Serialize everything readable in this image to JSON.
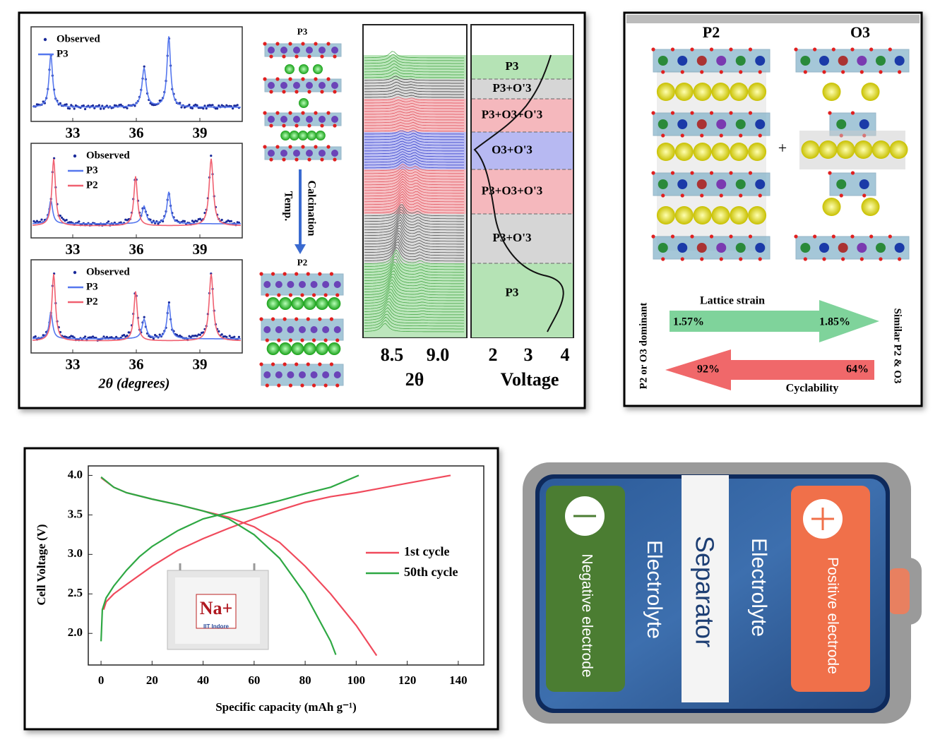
{
  "xrd_panel": {
    "plots": [
      {
        "legend": [
          "Observed",
          "P3"
        ],
        "xticks": [
          33,
          36,
          39
        ]
      },
      {
        "legend": [
          "Observed",
          "P3",
          "P2"
        ],
        "xticks": [
          33,
          36,
          39
        ]
      },
      {
        "legend": [
          "Observed",
          "P3",
          "P2"
        ],
        "xticks": [
          33,
          36,
          39
        ]
      }
    ],
    "xlabel": "2θ (degrees)",
    "structure_top": "P3",
    "arrow_labels": [
      "Calcination",
      "Temp."
    ],
    "structure_bottom": "P2",
    "insitu": {
      "phases": [
        "P3",
        "P3+O'3",
        "P3+O3+O'3",
        "O3+O'3",
        "P3+O3+O'3",
        "P3+O'3",
        "P3"
      ],
      "two_theta_ticks": [
        8.5,
        {
          "value": 9,
          "label": "9.0"
        }
      ],
      "two_theta_label": "2θ",
      "voltage_ticks": [
        2,
        3,
        4
      ],
      "voltage_label": "Voltage"
    }
  },
  "comparison_panel": {
    "structures": [
      "P2",
      "O3"
    ],
    "plus": "+",
    "strain_label": "Lattice strain",
    "strain_values": [
      "1.57%",
      "1.85%"
    ],
    "cyclability_values": [
      "92%",
      "64%"
    ],
    "cyclability_label": "Cyclability",
    "left_label": "P2 or O3 dominant",
    "right_label": "Similar P2 & O3"
  },
  "chart_data": {
    "type": "line",
    "xlabel": "Specific capacity (mAh g⁻¹)",
    "ylabel": "Cell Voltage (V)",
    "xlim": [
      -5,
      150
    ],
    "ylim": [
      1.6,
      4.12
    ],
    "xticks": [
      0,
      20,
      40,
      60,
      80,
      100,
      120,
      140
    ],
    "yticks": [
      {
        "value": 2,
        "label": "2.0"
      },
      2.5,
      {
        "value": 3,
        "label": "3.0"
      },
      3.5,
      {
        "value": 4,
        "label": "4.0"
      }
    ],
    "series": [
      {
        "name": "1st cycle",
        "color": "#f04a5c",
        "x": [
          1,
          2,
          5,
          10,
          20,
          30,
          40,
          50,
          60,
          70,
          80,
          90,
          100,
          110,
          120,
          130,
          137,
          null,
          0,
          5,
          10,
          20,
          30,
          40,
          50,
          60,
          70,
          80,
          90,
          100,
          108
        ],
        "values": [
          2.3,
          2.4,
          2.5,
          2.62,
          2.85,
          3.05,
          3.2,
          3.33,
          3.45,
          3.56,
          3.66,
          3.73,
          3.78,
          3.84,
          3.9,
          3.96,
          4.0,
          null,
          3.97,
          3.85,
          3.78,
          3.7,
          3.63,
          3.55,
          3.47,
          3.35,
          3.15,
          2.85,
          2.5,
          2.1,
          1.72
        ]
      },
      {
        "name": "50th cycle",
        "color": "#2ea843",
        "x": [
          0,
          0.5,
          2,
          5,
          10,
          15,
          20,
          30,
          40,
          50,
          60,
          70,
          80,
          90,
          101,
          null,
          0,
          5,
          10,
          20,
          30,
          40,
          50,
          60,
          70,
          80,
          90,
          92
        ],
        "values": [
          1.9,
          2.3,
          2.45,
          2.6,
          2.8,
          2.97,
          3.1,
          3.3,
          3.45,
          3.53,
          3.6,
          3.68,
          3.77,
          3.85,
          4.0,
          null,
          3.98,
          3.85,
          3.78,
          3.7,
          3.63,
          3.55,
          3.45,
          3.25,
          2.95,
          2.5,
          1.9,
          1.73
        ]
      }
    ],
    "inset": {
      "symbol": "Na+",
      "caption": "IIT Indore"
    }
  },
  "cell_diagram": {
    "negative": "Negative electrode",
    "electrolyte_left": "Electrolyte",
    "separator": "Separator",
    "electrolyte_right": "Electrolyte",
    "positive": "Positive electrode"
  }
}
